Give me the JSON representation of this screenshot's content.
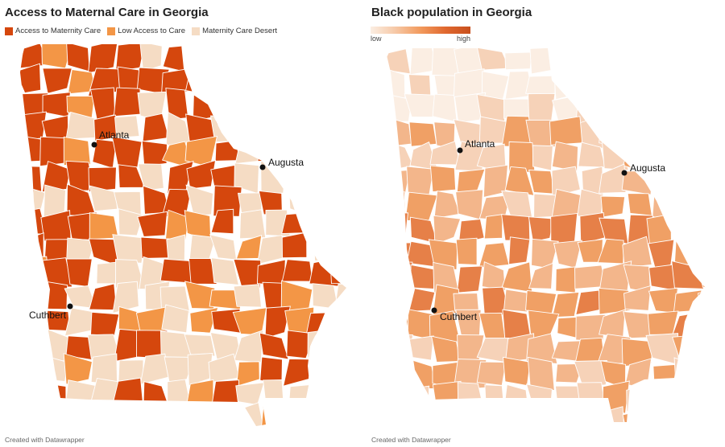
{
  "left_map": {
    "title": "Access to Maternal Care in Georgia",
    "legend": [
      {
        "label": "Access to Maternity Care",
        "color": "#d5470d"
      },
      {
        "label": "Low Access to Care",
        "color": "#f39646"
      },
      {
        "label": "Maternity Care Desert",
        "color": "#f5dcc4"
      }
    ],
    "cities": [
      "Atlanta",
      "Augusta",
      "Cuthbert"
    ],
    "footer": "Created with Datawrapper"
  },
  "right_map": {
    "title": "Black population in Georgia",
    "legend_low": "low",
    "legend_high": "high",
    "colors": [
      "#fbeee3",
      "#f6d2b8",
      "#f3b68b",
      "#f0a065",
      "#e68048",
      "#d96a30"
    ],
    "cities": [
      "Atlanta",
      "Augusta",
      "Cuthbert"
    ],
    "footer": "Created with Datawrapper"
  }
}
